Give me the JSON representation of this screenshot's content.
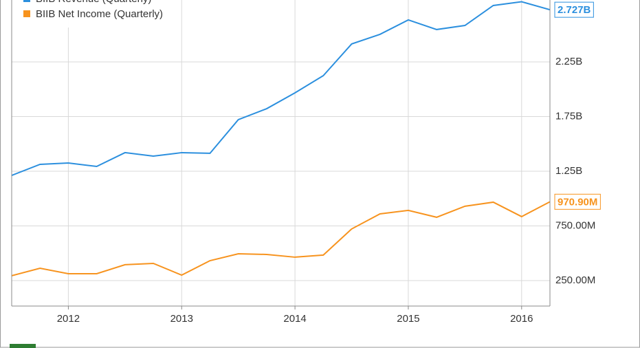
{
  "chart_data": {
    "type": "line",
    "x": [
      2011.5,
      2011.75,
      2012,
      2012.25,
      2012.5,
      2012.75,
      2013,
      2013.25,
      2013.5,
      2013.75,
      2014,
      2014.25,
      2014.5,
      2014.75,
      2015,
      2015.25,
      2015.5,
      2015.75,
      2016,
      2016.25
    ],
    "xlim": [
      2011.5,
      2016.25
    ],
    "xticks": [
      2012,
      2013,
      2014,
      2015,
      2016
    ],
    "ylim": [
      17000000,
      2816000000
    ],
    "yticks": [
      {
        "value": 250000000,
        "label": "250.00M"
      },
      {
        "value": 750000000,
        "label": "750.00M"
      },
      {
        "value": 1250000000,
        "label": "1.25B"
      },
      {
        "value": 1750000000,
        "label": "1.75B"
      },
      {
        "value": 2250000000,
        "label": "2.25B"
      }
    ],
    "grid": true,
    "legend": "top-left",
    "series": [
      {
        "name": "BIIB Revenue (Quarterly)",
        "color": "#2b8fde",
        "values": [
          1212000000,
          1313000000,
          1325000000,
          1294000000,
          1420000000,
          1388000000,
          1420000000,
          1414000000,
          1722000000,
          1822000000,
          1967000000,
          2124000000,
          2414000000,
          2502000000,
          2634000000,
          2546000000,
          2583000000,
          2766000000,
          2800000000,
          2727000000
        ],
        "value_labels": [
          null,
          null,
          null,
          null,
          null,
          null,
          null,
          null,
          null,
          null,
          null,
          null,
          null,
          null,
          null,
          null,
          null,
          null,
          null,
          "2.727B"
        ]
      },
      {
        "name": "BIIB Net Income (Quarterly)",
        "color": "#f7931e",
        "values": [
          294000000,
          363000000,
          313000000,
          313000000,
          395000000,
          407000000,
          300000000,
          432000000,
          495000000,
          489000000,
          464000000,
          483000000,
          722000000,
          860000000,
          892000000,
          829000000,
          930000000,
          967000000,
          835000000,
          970900000
        ],
        "value_labels": [
          null,
          null,
          null,
          null,
          null,
          null,
          null,
          null,
          null,
          null,
          null,
          null,
          null,
          null,
          null,
          null,
          null,
          null,
          null,
          "970.90M"
        ]
      }
    ]
  }
}
